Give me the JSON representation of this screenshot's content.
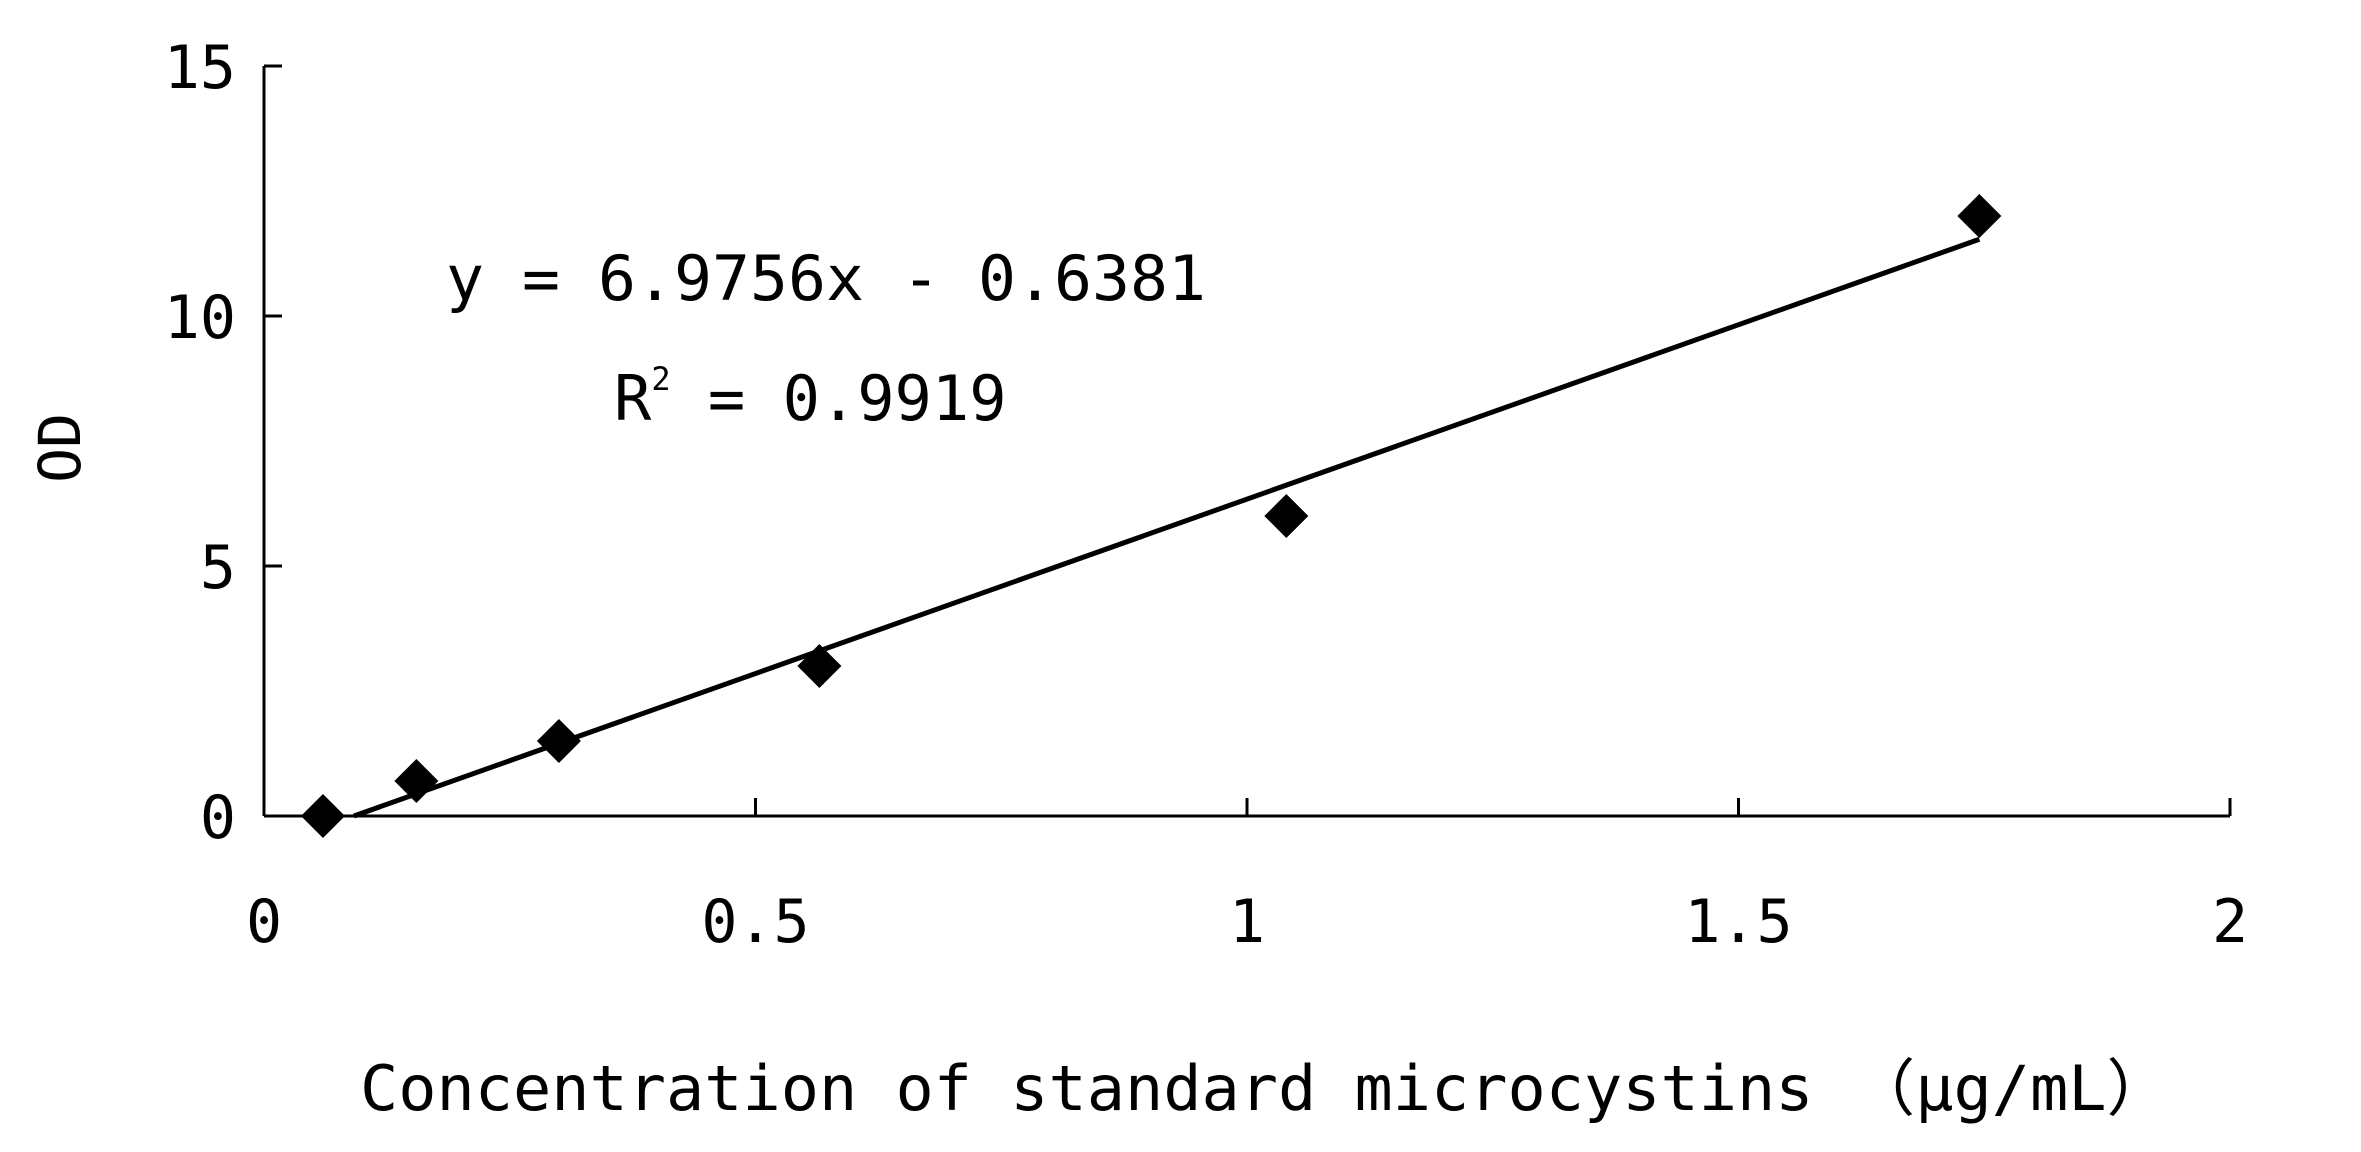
{
  "chart_data": {
    "type": "scatter",
    "title": "",
    "xlabel": "Concentration of standard microcystins （μg/mL）",
    "ylabel": "OD",
    "xlim": [
      0,
      2
    ],
    "ylim": [
      0,
      15
    ],
    "x_ticks": [
      "0",
      "0.5",
      "1",
      "1.5",
      "2"
    ],
    "y_ticks": [
      "0",
      "5",
      "10",
      "15"
    ],
    "grid": false,
    "legend": "none",
    "series": [
      {
        "marker": "diamond",
        "color": "#000000",
        "points": [
          {
            "x": 0.06,
            "y": 0.0
          },
          {
            "x": 0.155,
            "y": 0.7
          },
          {
            "x": 0.3,
            "y": 1.5
          },
          {
            "x": 0.565,
            "y": 3.0
          },
          {
            "x": 1.04,
            "y": 6.0
          },
          {
            "x": 1.745,
            "y": 12.0
          }
        ]
      }
    ],
    "trendline": {
      "type": "linear",
      "slope": 6.9756,
      "intercept": -0.6381,
      "x_range": [
        0.0915,
        1.745
      ],
      "color": "#000000"
    },
    "annotations": {
      "equation": "y = 6.9756x - 0.6381",
      "r2_prefix": "R",
      "r2_sup": "2",
      "r2_value": " = 0.9919"
    }
  }
}
